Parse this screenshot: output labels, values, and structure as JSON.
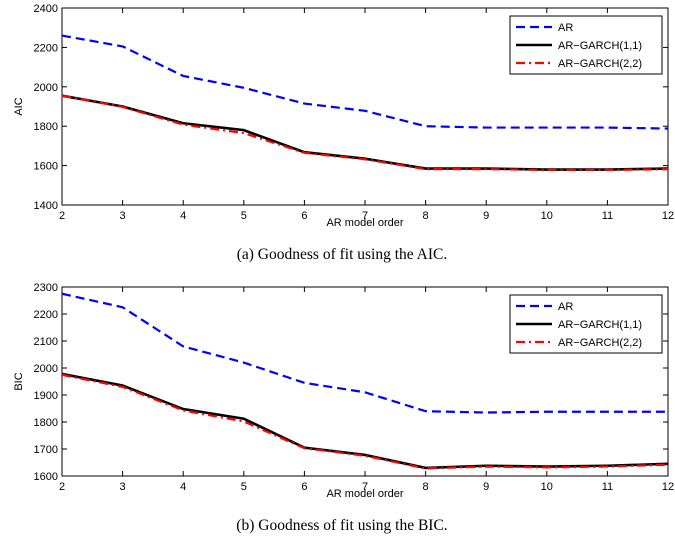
{
  "chart_data": [
    {
      "type": "line",
      "caption": "(a)  Goodness of fit using the AIC.",
      "xlabel": "AR model order",
      "ylabel": "AIC",
      "xlim": [
        2,
        12
      ],
      "ylim": [
        1400,
        2400
      ],
      "xticks": [
        2,
        3,
        4,
        5,
        6,
        7,
        8,
        9,
        10,
        11,
        12
      ],
      "yticks": [
        1400,
        1600,
        1800,
        2000,
        2200,
        2400
      ],
      "legend_position": "top-right",
      "grid": false,
      "x": [
        2,
        3,
        4,
        5,
        6,
        7,
        8,
        9,
        10,
        11,
        12
      ],
      "series": [
        {
          "name": "AR",
          "color": "#0000ff",
          "style": "dashed",
          "values": [
            2260,
            2205,
            2055,
            1995,
            1915,
            1878,
            1800,
            1793,
            1793,
            1793,
            1788
          ]
        },
        {
          "name": "AR−GARCH(1,1)",
          "color": "#000000",
          "style": "solid",
          "values": [
            1955,
            1900,
            1815,
            1780,
            1668,
            1635,
            1585,
            1585,
            1580,
            1580,
            1585
          ]
        },
        {
          "name": "AR−GARCH(2,2)",
          "color": "#ff0000",
          "style": "dashdot",
          "values": [
            1955,
            1898,
            1808,
            1765,
            1665,
            1632,
            1582,
            1582,
            1578,
            1578,
            1582
          ]
        }
      ]
    },
    {
      "type": "line",
      "caption": "(b)  Goodness of fit using the BIC.",
      "xlabel": "AR model order",
      "ylabel": "BIC",
      "xlim": [
        2,
        12
      ],
      "ylim": [
        1600,
        2300
      ],
      "xticks": [
        2,
        3,
        4,
        5,
        6,
        7,
        8,
        9,
        10,
        11,
        12
      ],
      "yticks": [
        1600,
        1700,
        1800,
        1900,
        2000,
        2100,
        2200,
        2300
      ],
      "legend_position": "top-right",
      "grid": false,
      "x": [
        2,
        3,
        4,
        5,
        6,
        7,
        8,
        9,
        10,
        11,
        12
      ],
      "series": [
        {
          "name": "AR",
          "color": "#0000ff",
          "style": "dashed",
          "values": [
            2275,
            2225,
            2080,
            2020,
            1945,
            1910,
            1840,
            1835,
            1838,
            1838,
            1838
          ]
        },
        {
          "name": "AR−GARCH(1,1)",
          "color": "#000000",
          "style": "solid",
          "values": [
            1978,
            1935,
            1848,
            1812,
            1705,
            1678,
            1630,
            1638,
            1635,
            1638,
            1645
          ]
        },
        {
          "name": "AR−GARCH(2,2)",
          "color": "#ff0000",
          "style": "dashdot",
          "values": [
            1975,
            1930,
            1843,
            1802,
            1703,
            1675,
            1628,
            1635,
            1632,
            1635,
            1642
          ]
        }
      ]
    }
  ]
}
